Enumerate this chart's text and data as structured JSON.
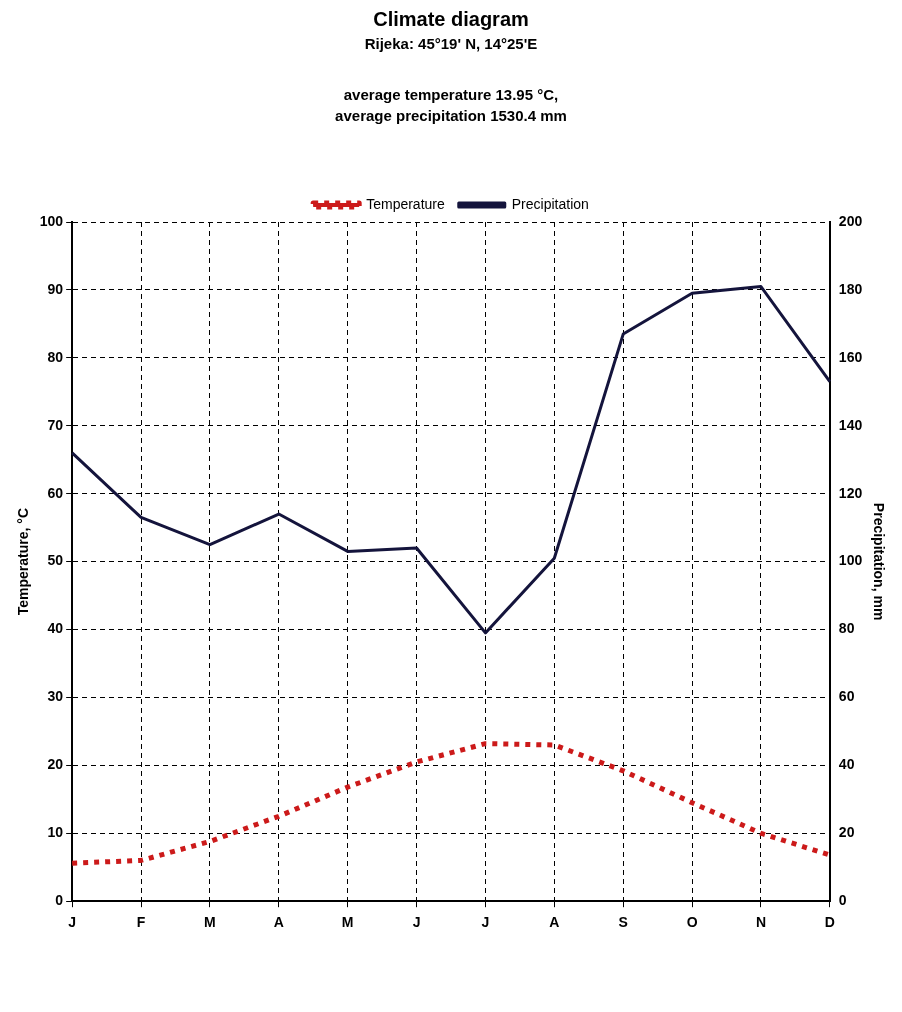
{
  "chart_data": {
    "type": "line",
    "title": "Climate diagram",
    "subtitle": "Rijeka:  45°19' N, 14°25'E",
    "annotations": [
      "average temperature 13.95 °C,",
      "average precipitation 1530.4 mm"
    ],
    "categories": [
      "J",
      "F",
      "M",
      "A",
      "M",
      "J",
      "J",
      "A",
      "S",
      "O",
      "N",
      "D"
    ],
    "series": [
      {
        "name": "Temperature",
        "color": "#cc1a1a",
        "line_style": "dotted",
        "values": [
          5.6,
          6,
          8.8,
          12.5,
          16.8,
          20.5,
          23.2,
          23,
          19.2,
          14.5,
          10,
          6.8
        ]
      },
      {
        "name": "Precipitation",
        "color": "#14143c",
        "line_style": "solid",
        "axis": "y2",
        "values": [
          132,
          113,
          105,
          114,
          103,
          104,
          79,
          101,
          167,
          179,
          181,
          153
        ]
      }
    ],
    "ylabel": "Temperature, °C",
    "y2label": "Precipitation, mm",
    "ylim": [
      0,
      100
    ],
    "yticks": [
      0,
      10,
      20,
      30,
      40,
      50,
      60,
      70,
      80,
      90,
      100
    ],
    "y2lim": [
      0,
      200
    ],
    "y2ticks": [
      0,
      20,
      40,
      60,
      80,
      100,
      120,
      140,
      160,
      180,
      200
    ],
    "grid": true,
    "legend": "top",
    "marker": "none"
  }
}
